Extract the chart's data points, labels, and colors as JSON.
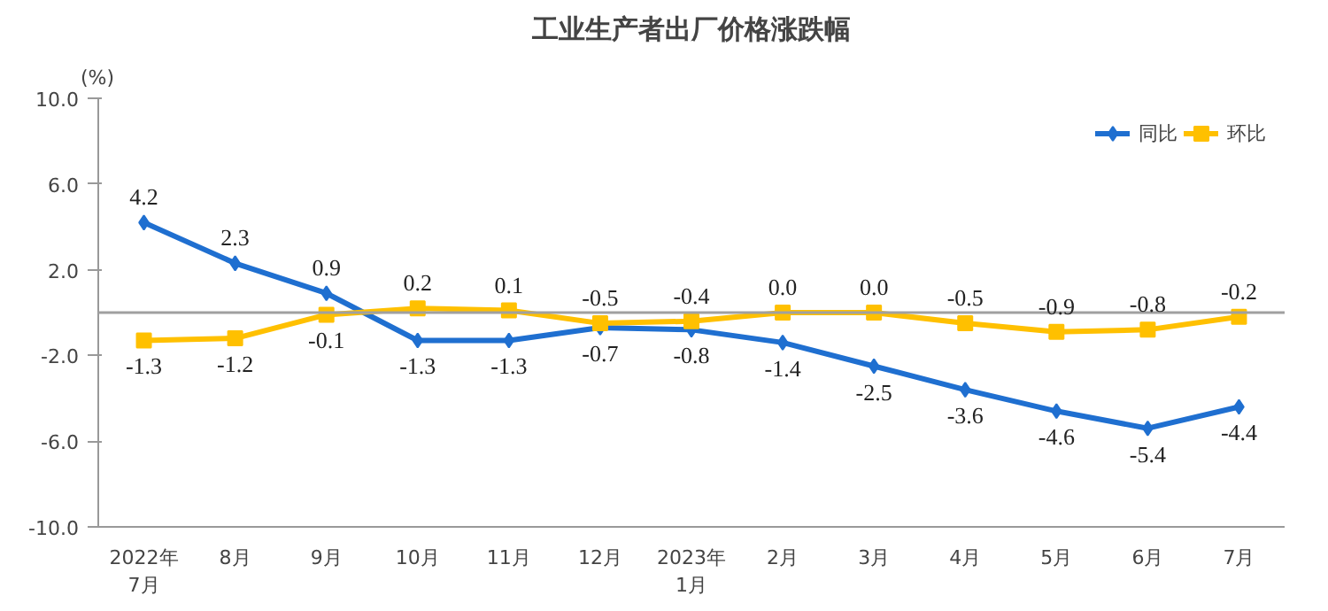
{
  "chart_data": {
    "type": "line",
    "title": "工业生产者出厂价格涨跌幅",
    "ylabel": "(%)",
    "categories": [
      "2022年\n7月",
      "8月",
      "9月",
      "10月",
      "11月",
      "12月",
      "2023年\n1月",
      "2月",
      "3月",
      "4月",
      "5月",
      "6月",
      "7月"
    ],
    "series": [
      {
        "name": "同比",
        "color": "#1f6fd0",
        "marker": "diamond",
        "values": [
          4.2,
          2.3,
          0.9,
          -1.3,
          -1.3,
          -0.7,
          -0.8,
          -1.4,
          -2.5,
          -3.6,
          -4.6,
          -5.4,
          -4.4
        ],
        "value_labels": [
          "4.2",
          "2.3",
          "0.9",
          "-1.3",
          "-1.3",
          "-0.7",
          "-0.8",
          "-1.4",
          "-2.5",
          "-3.6",
          "-4.6",
          "-5.4",
          "-4.4"
        ]
      },
      {
        "name": "环比",
        "color": "#ffc000",
        "marker": "square",
        "values": [
          -1.3,
          -1.2,
          -0.1,
          0.2,
          0.1,
          -0.5,
          -0.4,
          0.0,
          0.0,
          -0.5,
          -0.9,
          -0.8,
          -0.2
        ],
        "value_labels": [
          "-1.3",
          "-1.2",
          "-0.1",
          "0.2",
          "0.1",
          "-0.5",
          "-0.4",
          "0.0",
          "0.0",
          "-0.5",
          "-0.9",
          "-0.8",
          "-0.2"
        ]
      }
    ],
    "ylim": [
      -10,
      10
    ],
    "yticks": [
      {
        "value": -10,
        "label": "-10.0"
      },
      {
        "value": -6,
        "label": "-6.0"
      },
      {
        "value": -2,
        "label": "-2.0"
      },
      {
        "value": 2,
        "label": "2.0"
      },
      {
        "value": 6,
        "label": "6.0"
      },
      {
        "value": 10,
        "label": "10.0"
      }
    ],
    "ref_lines": [
      {
        "axis": "y",
        "value": 0,
        "color": "#a0a0a0"
      }
    ],
    "legend": "top right",
    "grid": false
  }
}
